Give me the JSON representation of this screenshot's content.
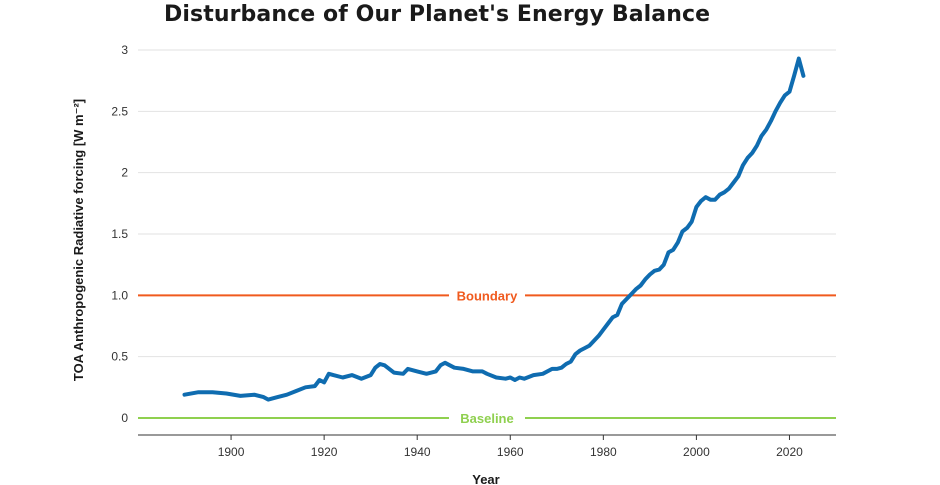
{
  "chart_data": {
    "type": "line",
    "title": "Disturbance of Our Planet's Energy Balance",
    "xlabel": "Year",
    "ylabel": "TOA Anthropogenic Radiative forcing [W m⁻²]",
    "xlim": [
      1880,
      2030
    ],
    "ylim": [
      -0.12,
      3.0
    ],
    "x_ticks": [
      1900,
      1920,
      1940,
      1960,
      1980,
      2000,
      2020
    ],
    "y_ticks": [
      0,
      0.5,
      1.0,
      1.5,
      2,
      2.5,
      3
    ],
    "y_tick_labels": [
      "0",
      "0.5",
      "1.0",
      "1.5",
      "2",
      "2.5",
      "3"
    ],
    "grid": "horizontal",
    "reference_lines": [
      {
        "label": "Boundary",
        "y": 1.0,
        "color": "#f05a1e"
      },
      {
        "label": "Baseline",
        "y": 0,
        "color": "#8fd04f"
      }
    ],
    "series": [
      {
        "color": "#0f6cb0",
        "x": [
          1890,
          1893,
          1896,
          1899,
          1902,
          1905,
          1907,
          1908,
          1910,
          1912,
          1914,
          1916,
          1918,
          1919,
          1920,
          1921,
          1922,
          1924,
          1926,
          1928,
          1930,
          1931,
          1932,
          1933,
          1935,
          1937,
          1938,
          1940,
          1942,
          1944,
          1945,
          1946,
          1947,
          1948,
          1950,
          1952,
          1954,
          1955,
          1957,
          1959,
          1960,
          1961,
          1962,
          1963,
          1965,
          1967,
          1969,
          1970,
          1971,
          1972,
          1973,
          1974,
          1975,
          1976,
          1977,
          1978,
          1979,
          1980,
          1981,
          1982,
          1983,
          1984,
          1985,
          1986,
          1987,
          1988,
          1989,
          1990,
          1991,
          1992,
          1993,
          1994,
          1995,
          1996,
          1997,
          1998,
          1999,
          2000,
          2001,
          2002,
          2003,
          2004,
          2005,
          2006,
          2007,
          2008,
          2009,
          2010,
          2011,
          2012,
          2013,
          2014,
          2015,
          2016,
          2017,
          2018,
          2019,
          2020,
          2021,
          2022,
          2023
        ],
        "y": [
          0.19,
          0.21,
          0.21,
          0.2,
          0.18,
          0.19,
          0.17,
          0.15,
          0.17,
          0.19,
          0.22,
          0.25,
          0.26,
          0.31,
          0.29,
          0.36,
          0.35,
          0.33,
          0.35,
          0.32,
          0.35,
          0.41,
          0.44,
          0.43,
          0.37,
          0.36,
          0.4,
          0.38,
          0.36,
          0.38,
          0.43,
          0.45,
          0.43,
          0.41,
          0.4,
          0.38,
          0.38,
          0.36,
          0.33,
          0.32,
          0.33,
          0.31,
          0.33,
          0.32,
          0.35,
          0.36,
          0.4,
          0.4,
          0.41,
          0.44,
          0.46,
          0.52,
          0.55,
          0.57,
          0.59,
          0.63,
          0.67,
          0.72,
          0.77,
          0.82,
          0.84,
          0.93,
          0.97,
          1.01,
          1.05,
          1.08,
          1.13,
          1.17,
          1.2,
          1.21,
          1.25,
          1.35,
          1.37,
          1.43,
          1.52,
          1.55,
          1.6,
          1.72,
          1.77,
          1.8,
          1.78,
          1.78,
          1.82,
          1.84,
          1.87,
          1.92,
          1.97,
          2.06,
          2.12,
          2.16,
          2.22,
          2.3,
          2.35,
          2.42,
          2.5,
          2.57,
          2.63,
          2.66,
          2.79,
          2.93,
          2.79
        ]
      }
    ]
  }
}
